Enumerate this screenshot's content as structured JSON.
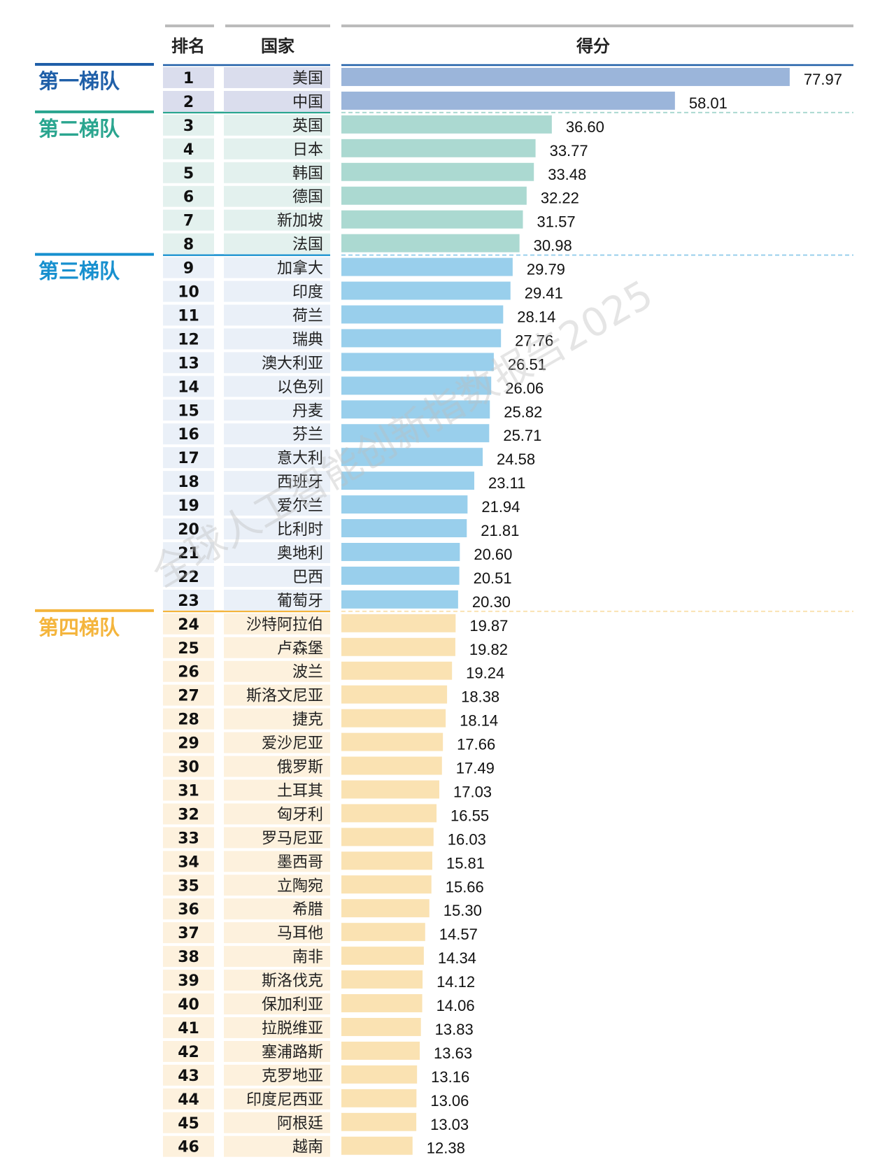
{
  "header": {
    "rank": "排名",
    "country": "国家",
    "score": "得分"
  },
  "watermark": "全球人工智能创新指数报告2025",
  "tiers": [
    {
      "name": "第一梯队",
      "color": "#1f5fa8",
      "bar": "#9bb5da",
      "cell": "#dadded",
      "first_rank": 1,
      "last_rank": 2
    },
    {
      "name": "第二梯队",
      "color": "#2aa58f",
      "bar": "#abd9d1",
      "cell": "#e3f1ee",
      "first_rank": 3,
      "last_rank": 8
    },
    {
      "name": "第三梯队",
      "color": "#1790cf",
      "bar": "#99cfec",
      "cell": "#eaf0f8",
      "first_rank": 9,
      "last_rank": 23
    },
    {
      "name": "第四梯队",
      "color": "#f4b53d",
      "bar": "#fae2b2",
      "cell": "#fdf1dd",
      "first_rank": 24,
      "last_rank": 46
    }
  ],
  "chart_data": {
    "type": "bar",
    "orientation": "horizontal",
    "ranks": [
      1,
      2,
      3,
      4,
      5,
      6,
      7,
      8,
      9,
      10,
      11,
      12,
      13,
      14,
      15,
      16,
      17,
      18,
      19,
      20,
      21,
      22,
      23,
      24,
      25,
      26,
      27,
      28,
      29,
      30,
      31,
      32,
      33,
      34,
      35,
      36,
      37,
      38,
      39,
      40,
      41,
      42,
      43,
      44,
      45,
      46
    ],
    "categories": [
      "美国",
      "中国",
      "英国",
      "日本",
      "韩国",
      "德国",
      "新加坡",
      "法国",
      "加拿大",
      "印度",
      "荷兰",
      "瑞典",
      "澳大利亚",
      "以色列",
      "丹麦",
      "芬兰",
      "意大利",
      "西班牙",
      "爱尔兰",
      "比利时",
      "奥地利",
      "巴西",
      "葡萄牙",
      "沙特阿拉伯",
      "卢森堡",
      "波兰",
      "斯洛文尼亚",
      "捷克",
      "爱沙尼亚",
      "俄罗斯",
      "土耳其",
      "匈牙利",
      "罗马尼亚",
      "墨西哥",
      "立陶宛",
      "希腊",
      "马耳他",
      "南非",
      "斯洛伐克",
      "保加利亚",
      "拉脱维亚",
      "塞浦路斯",
      "克罗地亚",
      "印度尼西亚",
      "阿根廷",
      "越南"
    ],
    "values": [
      "77.97",
      "58.01",
      "36.60",
      "33.77",
      "33.48",
      "32.22",
      "31.57",
      "30.98",
      "29.79",
      "29.41",
      "28.14",
      "27.76",
      "26.51",
      "26.06",
      "25.82",
      "25.71",
      "24.58",
      "23.11",
      "21.94",
      "21.81",
      "20.60",
      "20.51",
      "20.30",
      "19.87",
      "19.82",
      "19.24",
      "18.38",
      "18.14",
      "17.66",
      "17.49",
      "17.03",
      "16.55",
      "16.03",
      "15.81",
      "15.66",
      "15.30",
      "14.57",
      "14.34",
      "14.12",
      "14.06",
      "13.83",
      "13.63",
      "13.16",
      "13.06",
      "13.03",
      "12.38"
    ],
    "xlim": [
      0,
      78
    ],
    "grid": false,
    "legend": "none"
  }
}
